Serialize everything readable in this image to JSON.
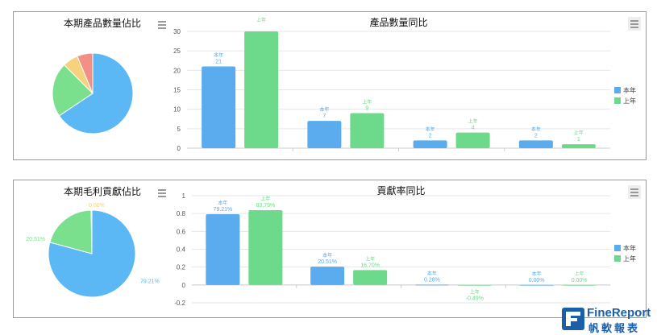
{
  "colors": {
    "this_year": "#5aacee",
    "last_year": "#6dd98a",
    "pie_blue": "#5bb8f5",
    "pie_green": "#7be08e",
    "pie_yellow": "#f7d27e",
    "pie_red": "#f39085",
    "grid": "#e6e6e6",
    "axis_text": "#555555"
  },
  "menu_icon": "hamburger-menu-icon",
  "chart_data": [
    {
      "type": "pie",
      "title": "本期產品數量佔比",
      "slices": [
        {
          "value": 21,
          "color": "#5bb8f5"
        },
        {
          "value": 7,
          "color": "#7be08e"
        },
        {
          "value": 2,
          "color": "#f7d27e"
        },
        {
          "value": 2,
          "color": "#f39085"
        }
      ],
      "labels": []
    },
    {
      "type": "bar",
      "title": "產品數量同比",
      "ylim": [
        0,
        30
      ],
      "yticks": [
        "0",
        "5",
        "10",
        "15",
        "20",
        "25",
        "30"
      ],
      "ytick_values": [
        0,
        5,
        10,
        15,
        20,
        25,
        30
      ],
      "categories": [
        "",
        "",
        "",
        ""
      ],
      "series": [
        {
          "name": "本年",
          "values": [
            21,
            7,
            2,
            2
          ],
          "labels": [
            "21",
            "7",
            "2",
            "2"
          ]
        },
        {
          "name": "上年",
          "values": [
            30,
            9,
            4,
            1
          ],
          "labels": [
            "",
            "9",
            "4",
            "1"
          ]
        }
      ],
      "legend": "right"
    },
    {
      "type": "pie",
      "title": "本期毛利貢獻佔比",
      "slices": [
        {
          "value": 79.21,
          "color": "#5bb8f5"
        },
        {
          "value": 20.51,
          "color": "#7be08e"
        },
        {
          "value": 0.28,
          "color": "#f7d27e"
        },
        {
          "value": 0.0,
          "color": "#f39085"
        }
      ],
      "labels": [
        "79.21%",
        "20.51%",
        "0.00%"
      ]
    },
    {
      "type": "bar",
      "title": "貢獻率同比",
      "ylim": [
        -0.2,
        1
      ],
      "yticks": [
        "-0.2",
        "0",
        "0.2",
        "0.4",
        "0.6",
        "0.8",
        "1"
      ],
      "ytick_values": [
        -0.2,
        0,
        0.2,
        0.4,
        0.6,
        0.8,
        1
      ],
      "categories": [
        "",
        "",
        "",
        ""
      ],
      "series": [
        {
          "name": "本年",
          "values": [
            0.7921,
            0.2051,
            0.0028,
            0.0
          ],
          "labels": [
            "79.21%",
            "20.51%",
            "0.28%",
            "0.00%"
          ]
        },
        {
          "name": "上年",
          "values": [
            0.8379,
            0.167,
            -0.0049,
            0.0
          ],
          "labels": [
            "83.79%",
            "16.70%",
            "-0.49%",
            "0.00%"
          ]
        }
      ],
      "legend": "right"
    }
  ],
  "logo": {
    "name": "FineReport",
    "subtitle": "帆軟報表"
  }
}
